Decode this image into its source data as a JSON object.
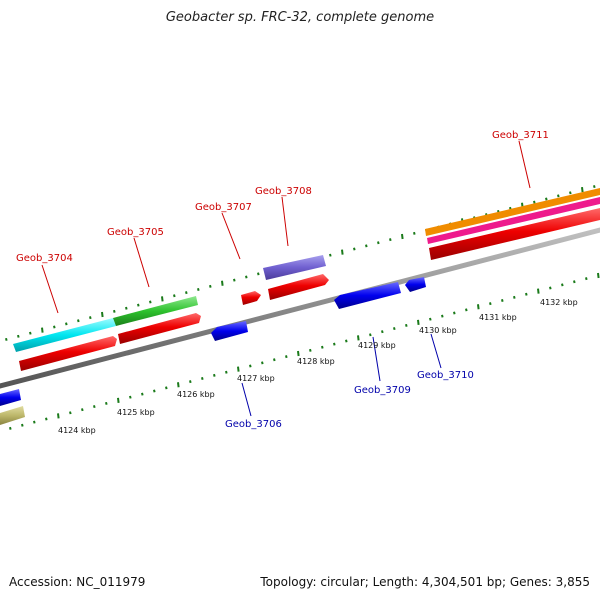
{
  "title": "Geobacter sp. FRC-32, complete genome",
  "footer": {
    "accession": "Accession: NC_011979",
    "summary": "Topology: circular; Length: 4,304,501 bp; Genes: 3,855"
  },
  "colors": {
    "backbone": "#8a8a8a",
    "tick": "#1a7a1a",
    "forward_label": "#cc0000",
    "reverse_label": "#0000aa"
  },
  "position_labels": [
    "4124 kbp",
    "4125 kbp",
    "4126 kbp",
    "4127 kbp",
    "4128 kbp",
    "4129 kbp",
    "4130 kbp",
    "4131 kbp",
    "4132 kbp"
  ],
  "gene_labels": [
    {
      "text": "Geob_3704",
      "strand": "forward"
    },
    {
      "text": "Geob_3705",
      "strand": "forward"
    },
    {
      "text": "Geob_3707",
      "strand": "forward"
    },
    {
      "text": "Geob_3708",
      "strand": "forward"
    },
    {
      "text": "Geob_3711",
      "strand": "forward"
    },
    {
      "text": "Geob_3706",
      "strand": "reverse"
    },
    {
      "text": "Geob_3709",
      "strand": "reverse"
    },
    {
      "text": "Geob_3710",
      "strand": "reverse"
    }
  ]
}
